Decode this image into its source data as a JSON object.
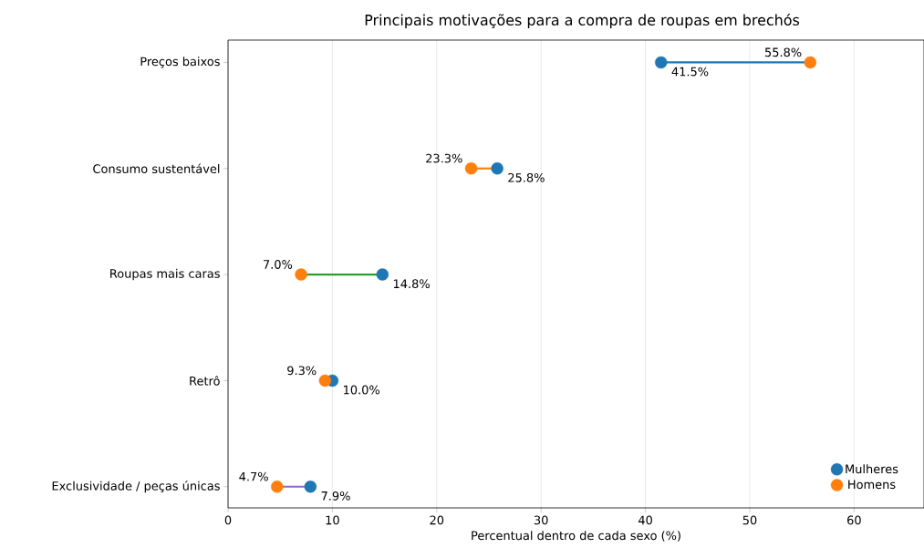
{
  "chart_data": {
    "type": "scatter",
    "orientation": "horizontal",
    "title": "Principais motivações para a compra de roupas em brechós",
    "xlabel": "Percentual dentro de cada sexo (%)",
    "categories": [
      "Preços baixos",
      "Consumo sustentável",
      "Roupas mais caras",
      "Retrô",
      "Exclusividade / peças únicas"
    ],
    "series": [
      {
        "type": "line",
        "marker": "none",
        "color": "#1f77b4",
        "x": [
          "Preços baixos",
          "Preços baixos"
        ],
        "values": [
          41.5,
          55.8
        ]
      },
      {
        "type": "line",
        "marker": "none",
        "color": "#ff7f0e",
        "x": [
          "Consumo sustentável",
          "Consumo sustentável"
        ],
        "values": [
          23.3,
          25.8
        ]
      },
      {
        "type": "line",
        "marker": "none",
        "color": "#2ca02c",
        "x": [
          "Roupas mais caras",
          "Roupas mais caras"
        ],
        "values": [
          7.0,
          14.8
        ]
      },
      {
        "type": "line",
        "marker": "none",
        "color": "#9467bd",
        "x": [
          "Exclusividade / peças únicas",
          "Exclusividade / peças únicas"
        ],
        "values": [
          4.7,
          7.9
        ]
      },
      {
        "name": "Mulheres",
        "color": "#1f77b4",
        "values": [
          41.5,
          25.8,
          14.8,
          10.0,
          7.9
        ],
        "value_labels": [
          "41.5%",
          "25.8%",
          "14.8%",
          "10.0%",
          "7.9%"
        ]
      },
      {
        "name": "Homens",
        "color": "#ff7f0e",
        "values": [
          55.8,
          23.3,
          7.0,
          9.3,
          4.7
        ],
        "value_labels": [
          "55.8%",
          "23.3%",
          "7.0%",
          "9.3%",
          "4.7%"
        ]
      }
    ],
    "xlim": [
      0,
      66.7
    ],
    "xticks": [
      0,
      10,
      20,
      30,
      40,
      50,
      60
    ],
    "grid": "x",
    "legend": "bottom right"
  }
}
